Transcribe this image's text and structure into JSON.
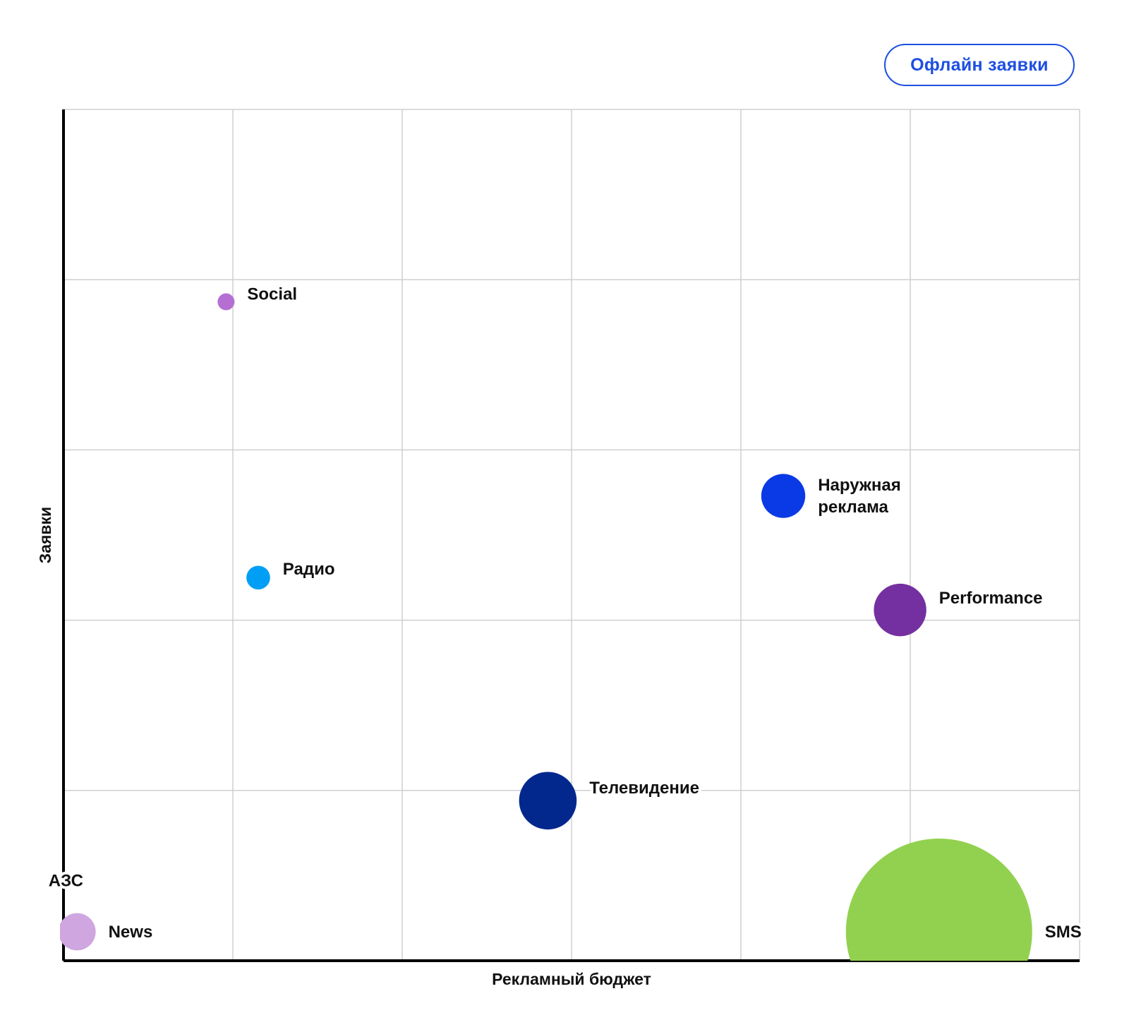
{
  "button": {
    "label": "Офлайн заявки"
  },
  "chart_data": {
    "type": "scatter",
    "xlabel": "Рекламный бюджет",
    "ylabel": "Заявки",
    "xlim": [
      0,
      6
    ],
    "ylim": [
      0,
      5
    ],
    "grid": true,
    "points": [
      {
        "name": "АЗС",
        "label_lines": [
          "АЗС"
        ],
        "x": 0.08,
        "y": 0.17,
        "r": 0.11,
        "color": "#cfa6e0",
        "label_pos": "above-left"
      },
      {
        "name": "News",
        "label_lines": [
          "News"
        ],
        "x": 0.08,
        "y": 0.17,
        "r": 0.11,
        "color": "#cfa6e0",
        "label_pos": "right"
      },
      {
        "name": "Social",
        "label_lines": [
          "Social"
        ],
        "x": 0.96,
        "y": 3.87,
        "r": 0.05,
        "color": "#b56fd2",
        "label_pos": "right-above"
      },
      {
        "name": "Радио",
        "label_lines": [
          "Радио"
        ],
        "x": 1.15,
        "y": 2.25,
        "r": 0.07,
        "color": "#009ff5",
        "label_pos": "right-above"
      },
      {
        "name": "Телевидение",
        "label_lines": [
          "Телевидение"
        ],
        "x": 2.86,
        "y": 0.94,
        "r": 0.17,
        "color": "#03288d",
        "label_pos": "right-above"
      },
      {
        "name": "Наружная реклама",
        "label_lines": [
          "Наружная",
          "реклама"
        ],
        "x": 4.25,
        "y": 2.73,
        "r": 0.13,
        "color": "#0a3ae6",
        "label_pos": "right"
      },
      {
        "name": "Performance",
        "label_lines": [
          "Performance"
        ],
        "x": 4.94,
        "y": 2.06,
        "r": 0.155,
        "color": "#7430a0",
        "label_pos": "right-above"
      },
      {
        "name": "SMS",
        "label_lines": [
          "SMS"
        ],
        "x": 5.17,
        "y": 0.17,
        "r": 0.55,
        "color": "#92d14f",
        "label_pos": "right"
      }
    ]
  }
}
